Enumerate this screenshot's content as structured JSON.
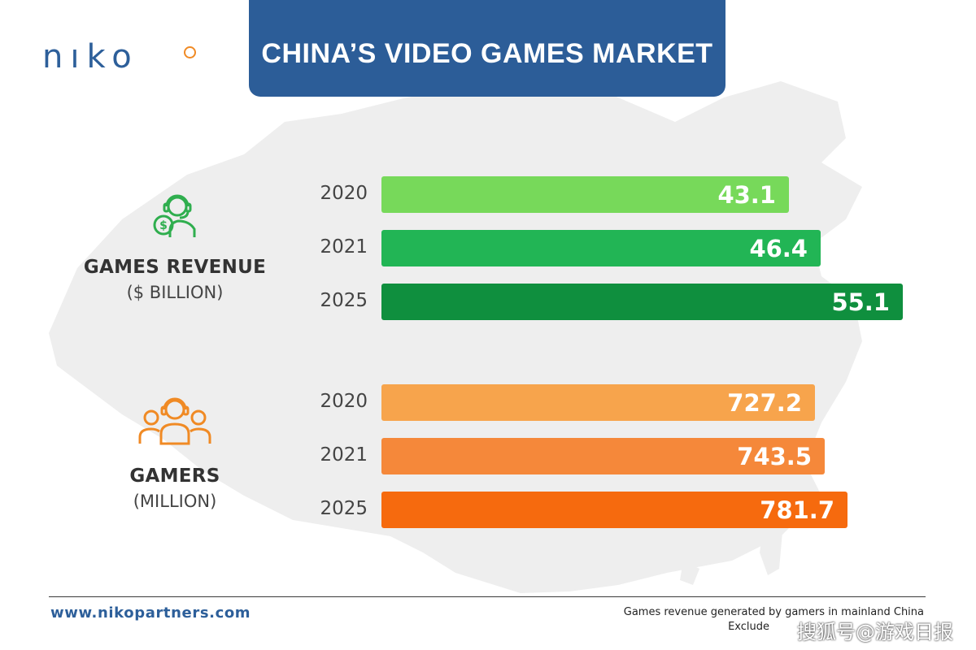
{
  "brand": {
    "logo_text": "NIKO",
    "website": "www.nikopartners.com"
  },
  "title": "CHINA’S VIDEO GAMES MARKET",
  "colors": {
    "banner": "#2c5d98",
    "revenue": [
      "#77d95a",
      "#22b555",
      "#0f8f3e"
    ],
    "gamers": [
      "#f7a44c",
      "#f5883a",
      "#f66a0e"
    ]
  },
  "icons": {
    "revenue": "headset-dollar-icon",
    "gamers": "group-headset-icon"
  },
  "footer": {
    "note_line1": "Games revenue generated by gamers in mainland China",
    "note_line2": "Exclude",
    "watermark": "搜狐号@游戏日报"
  },
  "chart_data": [
    {
      "type": "bar",
      "orientation": "horizontal",
      "title": "GAMES REVENUE",
      "unit": "($ BILLION)",
      "categories": [
        "2020",
        "2021",
        "2025"
      ],
      "values": [
        43.1,
        46.4,
        55.1
      ],
      "labels": [
        "43.1",
        "46.4",
        "55.1"
      ]
    },
    {
      "type": "bar",
      "orientation": "horizontal",
      "title": "GAMERS",
      "unit": "(MILLION)",
      "categories": [
        "2020",
        "2021",
        "2025"
      ],
      "values": [
        727.2,
        743.5,
        781.7
      ],
      "labels": [
        "727.2",
        "743.5",
        "781.7"
      ]
    }
  ]
}
